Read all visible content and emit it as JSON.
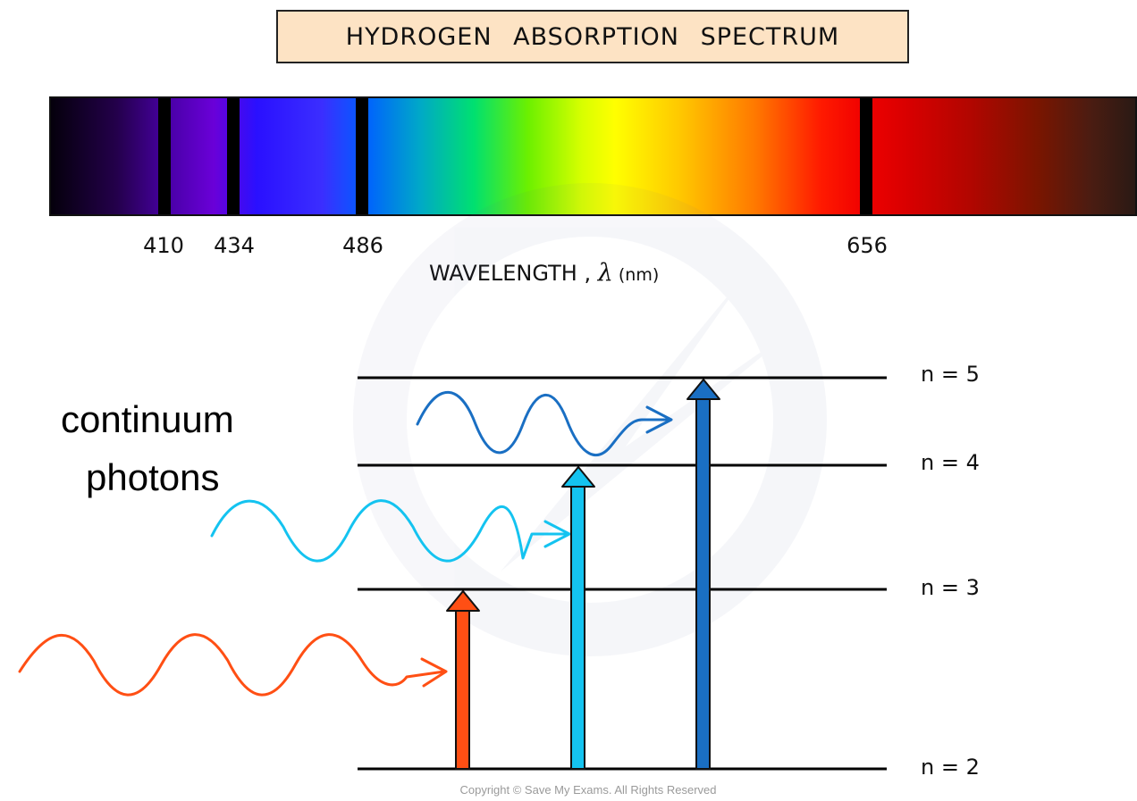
{
  "title": "HYDROGEN ABSORPTION SPECTRUM",
  "spectrum": {
    "absorption_lines": [
      {
        "wavelength": "410"
      },
      {
        "wavelength": "434"
      },
      {
        "wavelength": "486"
      },
      {
        "wavelength": "656"
      }
    ],
    "axis_label_main": "WAVELENGTH , ",
    "axis_label_symbol": "λ",
    "axis_label_unit": " (nm)"
  },
  "photon_label": {
    "line1": "continuum",
    "line2": "photons"
  },
  "energy_levels": [
    {
      "label": "n = 5"
    },
    {
      "label": "n = 4"
    },
    {
      "label": "n = 3"
    },
    {
      "label": "n = 2"
    }
  ],
  "colors": {
    "red_transition": "#ff4f14",
    "cyan_transition": "#14c3f0",
    "blue_transition": "#1a6fc3"
  },
  "copyright": "Copyright © Save My Exams. All Rights Reserved"
}
